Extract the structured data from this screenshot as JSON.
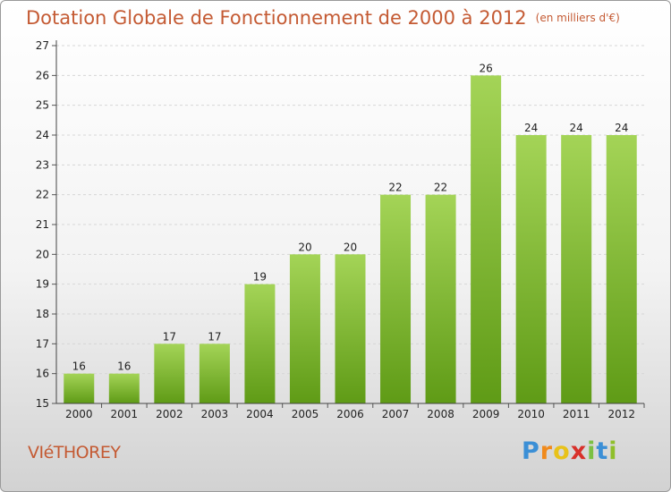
{
  "title": "Dotation Globale de Fonctionnement de 2000 à 2012",
  "unit_note": "(en milliers d'€)",
  "commune": "VIéTHOREY",
  "brand": {
    "letters": [
      "P",
      "r",
      "o",
      "x",
      "i",
      "t",
      "i"
    ],
    "colors": [
      "#3b8fd6",
      "#f08a1c",
      "#e8c21a",
      "#d8302a",
      "#7bc043",
      "#3b8fd6",
      "#8fbf2a"
    ]
  },
  "colors": {
    "bar_top": "#a4d457",
    "bar_bottom": "#5f9b16",
    "title": "#c45a33"
  },
  "chart_data": {
    "type": "bar",
    "categories": [
      "2000",
      "2001",
      "2002",
      "2003",
      "2004",
      "2005",
      "2006",
      "2007",
      "2008",
      "2009",
      "2010",
      "2011",
      "2012"
    ],
    "values": [
      16,
      16,
      17,
      17,
      19,
      20,
      20,
      22,
      22,
      26,
      24,
      24,
      24
    ],
    "ylim": [
      15,
      27
    ],
    "yticks": [
      15,
      16,
      17,
      18,
      19,
      20,
      21,
      22,
      23,
      24,
      25,
      26,
      27
    ],
    "grid": true,
    "legend": "none"
  }
}
